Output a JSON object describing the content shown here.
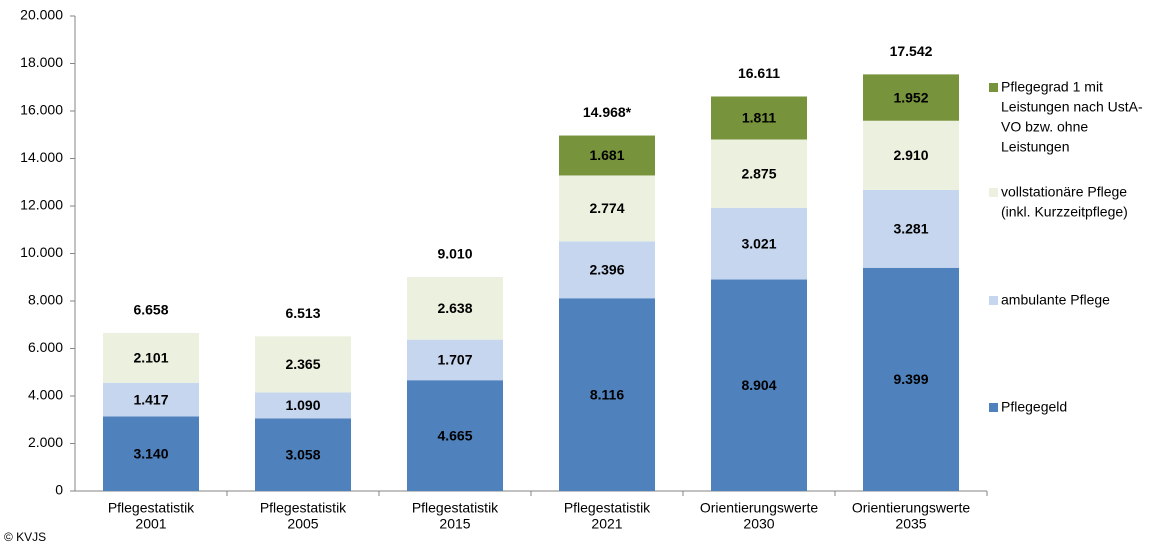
{
  "chart_data": {
    "type": "stacked_bar",
    "categories": [
      [
        "Pflegestatistik",
        "2001"
      ],
      [
        "Pflegestatistik",
        "2005"
      ],
      [
        "Pflegestatistik",
        "2015"
      ],
      [
        "Pflegestatistik",
        "2021"
      ],
      [
        "Orientierungswerte",
        "2030"
      ],
      [
        "Orientierungswerte",
        "2035"
      ]
    ],
    "series": [
      {
        "name": [
          "Pflegegeld"
        ],
        "color": "#4f81bd",
        "values": [
          3140,
          3058,
          4665,
          8116,
          8904,
          9399
        ],
        "value_labels": [
          "3.140",
          "3.058",
          "4.665",
          "8.116",
          "8.904",
          "9.399"
        ]
      },
      {
        "name": [
          "ambulante Pflege"
        ],
        "color": "#c6d6ee",
        "values": [
          1417,
          1090,
          1707,
          2396,
          3021,
          3281
        ],
        "value_labels": [
          "1.417",
          "1.090",
          "1.707",
          "2.396",
          "3.021",
          "3.281"
        ]
      },
      {
        "name": [
          "vollstationäre Pflege",
          "(inkl. Kurzzeitpflege)"
        ],
        "color": "#ebf1de",
        "values": [
          2101,
          2365,
          2638,
          2774,
          2875,
          2910
        ],
        "value_labels": [
          "2.101",
          "2.365",
          "2.638",
          "2.774",
          "2.875",
          "2.910"
        ]
      },
      {
        "name": [
          "Pflegegrad 1 mit",
          "Leistungen nach UstA-",
          "VO bzw. ohne",
          "Leistungen"
        ],
        "color": "#77933c",
        "values": [
          null,
          null,
          null,
          1681,
          1811,
          1952
        ],
        "value_labels": [
          null,
          null,
          null,
          "1.681",
          "1.811",
          "1.952"
        ]
      }
    ],
    "totals": {
      "values": [
        6658,
        6513,
        9010,
        14968,
        16611,
        17542
      ],
      "value_labels": [
        "6.658",
        "6.513",
        "9.010",
        "14.968*",
        "16.611",
        "17.542"
      ]
    },
    "ylim": [
      0,
      20000
    ],
    "yticks": [
      0,
      {
        "value": 2000,
        "label": "2.000"
      },
      {
        "value": 4000,
        "label": "4.000"
      },
      {
        "value": 6000,
        "label": "6.000"
      },
      {
        "value": 8000,
        "label": "8.000"
      },
      {
        "value": 10000,
        "label": "10.000"
      },
      {
        "value": 12000,
        "label": "12.000"
      },
      {
        "value": 14000,
        "label": "14.000"
      },
      {
        "value": 16000,
        "label": "16.000"
      },
      {
        "value": 18000,
        "label": "18.000"
      },
      {
        "value": 20000,
        "label": "20.000"
      }
    ],
    "grid": false,
    "legend": "right",
    "footnote": "© KVJS"
  }
}
